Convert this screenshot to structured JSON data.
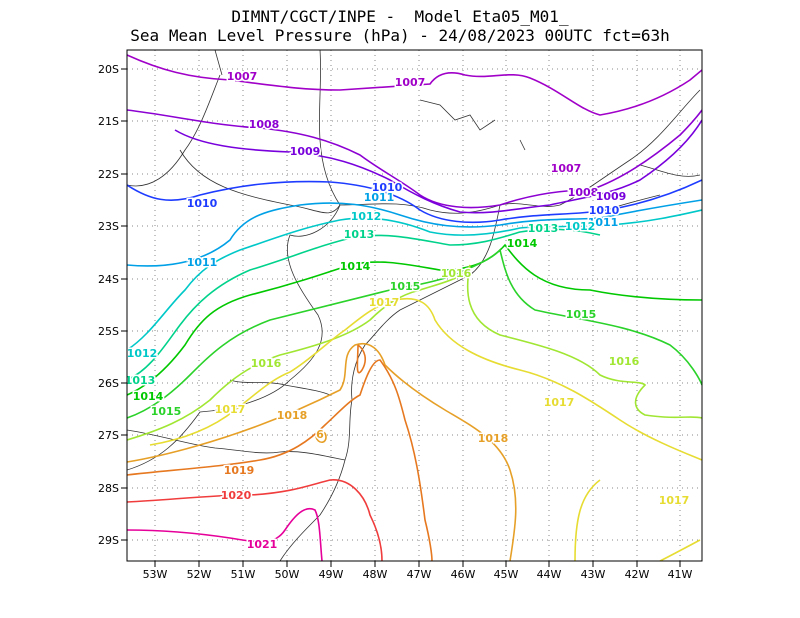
{
  "title": {
    "line1": "DIMNT/CGCT/INPE -  Model Eta05_M01_",
    "line2": "Sea Mean Level Pressure (hPa) - 24/08/2023 00UTC fct=63h"
  },
  "lat_ticks": [
    "20S",
    "21S",
    "22S",
    "23S",
    "24S",
    "25S",
    "26S",
    "27S",
    "28S",
    "29S"
  ],
  "lon_ticks": [
    "53W",
    "52W",
    "51W",
    "50W",
    "49W",
    "48W",
    "47W",
    "46W",
    "45W",
    "44W",
    "43W",
    "42W",
    "41W"
  ],
  "contours": [
    {
      "level": "1007",
      "color": "#a000c8"
    },
    {
      "level": "1008",
      "color": "#8c00d2"
    },
    {
      "level": "1009",
      "color": "#7800dc"
    },
    {
      "level": "1010",
      "color": "#1e3cff"
    },
    {
      "level": "1011",
      "color": "#00a0e6"
    },
    {
      "level": "1012",
      "color": "#00c8c8"
    },
    {
      "level": "1013",
      "color": "#00d28c"
    },
    {
      "level": "1014",
      "color": "#00c800"
    },
    {
      "level": "1015",
      "color": "#2ad22a"
    },
    {
      "level": "1016",
      "color": "#a0e632"
    },
    {
      "level": "1017",
      "color": "#e6dc32"
    },
    {
      "level": "1018",
      "color": "#e6a028"
    },
    {
      "level": "1019",
      "color": "#e67820"
    },
    {
      "level": "1020",
      "color": "#f03c3c"
    },
    {
      "level": "1021",
      "color": "#e6009a"
    }
  ],
  "labels": [
    {
      "text": "1007",
      "color": "#a000c8"
    },
    {
      "text": "1007",
      "color": "#a000c8"
    },
    {
      "text": "1007",
      "color": "#a000c8"
    },
    {
      "text": "1008",
      "color": "#8c00d2"
    },
    {
      "text": "1008",
      "color": "#8c00d2"
    },
    {
      "text": "1009",
      "color": "#7800dc"
    },
    {
      "text": "1009",
      "color": "#7800dc"
    },
    {
      "text": "1010",
      "color": "#1e3cff"
    },
    {
      "text": "1010",
      "color": "#1e3cff"
    },
    {
      "text": "1010",
      "color": "#1e3cff"
    },
    {
      "text": "1011",
      "color": "#00a0e6"
    },
    {
      "text": "1011",
      "color": "#00a0e6"
    },
    {
      "text": "1011",
      "color": "#00a0e6"
    },
    {
      "text": "1012",
      "color": "#00c8c8"
    },
    {
      "text": "1012",
      "color": "#00c8c8"
    },
    {
      "text": "1012",
      "color": "#00c8c8"
    },
    {
      "text": "1013",
      "color": "#00d28c"
    },
    {
      "text": "1013",
      "color": "#00d28c"
    },
    {
      "text": "1013",
      "color": "#00d28c"
    },
    {
      "text": "1014",
      "color": "#00c800"
    },
    {
      "text": "1014",
      "color": "#00c800"
    },
    {
      "text": "1014",
      "color": "#00c800"
    },
    {
      "text": "1015",
      "color": "#2ad22a"
    },
    {
      "text": "1015",
      "color": "#2ad22a"
    },
    {
      "text": "1015",
      "color": "#2ad22a"
    },
    {
      "text": "1016",
      "color": "#a0e632"
    },
    {
      "text": "1016",
      "color": "#a0e632"
    },
    {
      "text": "1016",
      "color": "#a0e632"
    },
    {
      "text": "1017",
      "color": "#e6dc32"
    },
    {
      "text": "1017",
      "color": "#e6dc32"
    },
    {
      "text": "1017",
      "color": "#e6dc32"
    },
    {
      "text": "1017",
      "color": "#e6dc32"
    },
    {
      "text": "1018",
      "color": "#e6a028"
    },
    {
      "text": "1018",
      "color": "#e6a028"
    },
    {
      "text": "6",
      "color": "#e6a028"
    },
    {
      "text": "1019",
      "color": "#e67820"
    },
    {
      "text": "1020",
      "color": "#f03c3c"
    },
    {
      "text": "1021",
      "color": "#e6009a"
    }
  ]
}
